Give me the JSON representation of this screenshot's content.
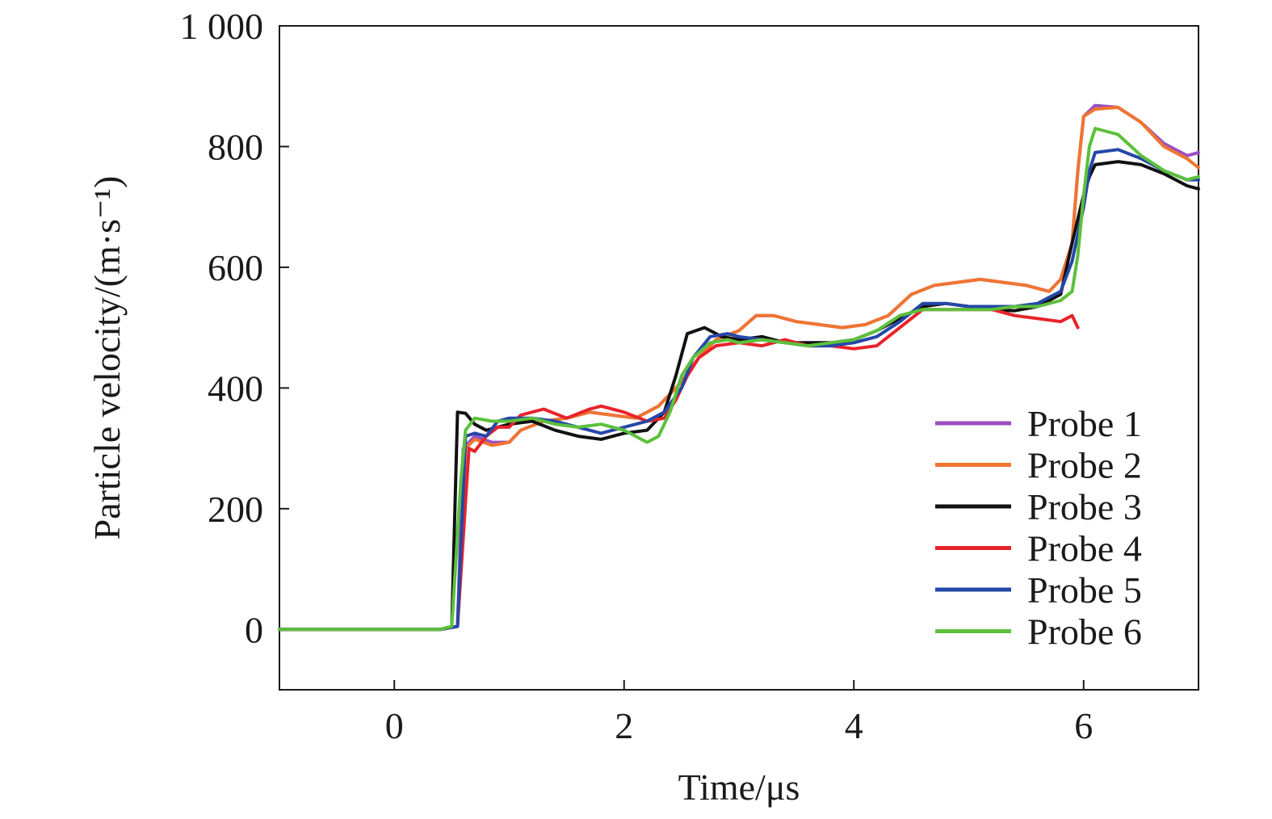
{
  "chart_data": {
    "type": "line",
    "xlabel": "Time/μs",
    "ylabel": "Particle velocity/(m·s⁻¹)",
    "xlim": [
      -1.0,
      7.0
    ],
    "ylim": [
      -100,
      1000
    ],
    "x_ticks": [
      0,
      2,
      4,
      6
    ],
    "x_tick_labels": [
      "0",
      "2",
      "4",
      "6"
    ],
    "y_ticks": [
      0,
      200,
      400,
      600,
      800,
      1000
    ],
    "y_tick_labels": [
      "0",
      "200",
      "400",
      "600",
      "800",
      "1 000"
    ],
    "grid": false,
    "legend_position": "bottom-right",
    "series": [
      {
        "name": "Probe 1",
        "color": "#9b4fc1",
        "points": [
          [
            -1.0,
            0
          ],
          [
            0.4,
            0
          ],
          [
            0.55,
            5
          ],
          [
            0.6,
            300
          ],
          [
            0.7,
            320
          ],
          [
            0.85,
            310
          ],
          [
            1.0,
            310
          ],
          [
            1.1,
            330
          ],
          [
            1.3,
            345
          ],
          [
            1.5,
            350
          ],
          [
            1.7,
            360
          ],
          [
            1.9,
            355
          ],
          [
            2.1,
            350
          ],
          [
            2.3,
            370
          ],
          [
            2.5,
            410
          ],
          [
            2.65,
            450
          ],
          [
            2.8,
            480
          ],
          [
            3.0,
            495
          ],
          [
            3.15,
            520
          ],
          [
            3.3,
            520
          ],
          [
            3.5,
            510
          ],
          [
            3.7,
            505
          ],
          [
            3.9,
            500
          ],
          [
            4.1,
            505
          ],
          [
            4.3,
            520
          ],
          [
            4.5,
            555
          ],
          [
            4.7,
            570
          ],
          [
            4.9,
            575
          ],
          [
            5.1,
            580
          ],
          [
            5.3,
            575
          ],
          [
            5.5,
            570
          ],
          [
            5.7,
            560
          ],
          [
            5.8,
            580
          ],
          [
            5.9,
            640
          ],
          [
            5.95,
            760
          ],
          [
            6.0,
            850
          ],
          [
            6.1,
            868
          ],
          [
            6.3,
            865
          ],
          [
            6.5,
            840
          ],
          [
            6.7,
            805
          ],
          [
            6.9,
            785
          ],
          [
            7.0,
            790
          ]
        ]
      },
      {
        "name": "Probe 2",
        "color": "#f07530",
        "points": [
          [
            -1.0,
            0
          ],
          [
            0.4,
            0
          ],
          [
            0.55,
            5
          ],
          [
            0.62,
            300
          ],
          [
            0.7,
            315
          ],
          [
            0.85,
            305
          ],
          [
            1.0,
            310
          ],
          [
            1.1,
            330
          ],
          [
            1.3,
            345
          ],
          [
            1.5,
            350
          ],
          [
            1.7,
            360
          ],
          [
            1.9,
            355
          ],
          [
            2.1,
            350
          ],
          [
            2.3,
            370
          ],
          [
            2.5,
            410
          ],
          [
            2.65,
            450
          ],
          [
            2.8,
            480
          ],
          [
            3.0,
            495
          ],
          [
            3.15,
            520
          ],
          [
            3.3,
            520
          ],
          [
            3.5,
            510
          ],
          [
            3.7,
            505
          ],
          [
            3.9,
            500
          ],
          [
            4.1,
            505
          ],
          [
            4.3,
            520
          ],
          [
            4.5,
            555
          ],
          [
            4.7,
            570
          ],
          [
            4.9,
            575
          ],
          [
            5.1,
            580
          ],
          [
            5.3,
            575
          ],
          [
            5.5,
            570
          ],
          [
            5.7,
            560
          ],
          [
            5.8,
            580
          ],
          [
            5.9,
            640
          ],
          [
            5.95,
            760
          ],
          [
            6.0,
            850
          ],
          [
            6.1,
            862
          ],
          [
            6.3,
            865
          ],
          [
            6.5,
            840
          ],
          [
            6.7,
            800
          ],
          [
            6.9,
            780
          ],
          [
            7.0,
            765
          ]
        ]
      },
      {
        "name": "Probe 3",
        "color": "#111111",
        "points": [
          [
            -1.0,
            0
          ],
          [
            0.4,
            0
          ],
          [
            0.5,
            5
          ],
          [
            0.55,
            360
          ],
          [
            0.62,
            358
          ],
          [
            0.7,
            340
          ],
          [
            0.8,
            330
          ],
          [
            0.9,
            335
          ],
          [
            1.0,
            340
          ],
          [
            1.2,
            345
          ],
          [
            1.4,
            330
          ],
          [
            1.6,
            320
          ],
          [
            1.8,
            315
          ],
          [
            2.0,
            325
          ],
          [
            2.2,
            330
          ],
          [
            2.35,
            360
          ],
          [
            2.45,
            420
          ],
          [
            2.55,
            490
          ],
          [
            2.7,
            500
          ],
          [
            2.85,
            485
          ],
          [
            3.0,
            480
          ],
          [
            3.2,
            485
          ],
          [
            3.4,
            475
          ],
          [
            3.6,
            475
          ],
          [
            3.8,
            475
          ],
          [
            4.0,
            480
          ],
          [
            4.2,
            495
          ],
          [
            4.4,
            515
          ],
          [
            4.6,
            535
          ],
          [
            4.8,
            540
          ],
          [
            5.0,
            535
          ],
          [
            5.2,
            530
          ],
          [
            5.4,
            528
          ],
          [
            5.6,
            535
          ],
          [
            5.8,
            555
          ],
          [
            5.9,
            640
          ],
          [
            6.0,
            720
          ],
          [
            6.05,
            750
          ],
          [
            6.1,
            770
          ],
          [
            6.3,
            775
          ],
          [
            6.5,
            770
          ],
          [
            6.7,
            755
          ],
          [
            6.9,
            735
          ],
          [
            7.0,
            730
          ]
        ]
      },
      {
        "name": "Probe 4",
        "color": "#e8232a",
        "points": [
          [
            -1.0,
            0
          ],
          [
            0.4,
            0
          ],
          [
            0.55,
            5
          ],
          [
            0.65,
            300
          ],
          [
            0.7,
            295
          ],
          [
            0.8,
            320
          ],
          [
            0.9,
            335
          ],
          [
            1.0,
            335
          ],
          [
            1.1,
            355
          ],
          [
            1.3,
            365
          ],
          [
            1.5,
            350
          ],
          [
            1.7,
            365
          ],
          [
            1.8,
            370
          ],
          [
            2.0,
            360
          ],
          [
            2.2,
            345
          ],
          [
            2.35,
            350
          ],
          [
            2.45,
            380
          ],
          [
            2.55,
            420
          ],
          [
            2.65,
            450
          ],
          [
            2.8,
            470
          ],
          [
            3.0,
            475
          ],
          [
            3.2,
            470
          ],
          [
            3.4,
            480
          ],
          [
            3.6,
            470
          ],
          [
            3.8,
            470
          ],
          [
            4.0,
            465
          ],
          [
            4.2,
            470
          ],
          [
            4.4,
            500
          ],
          [
            4.6,
            530
          ],
          [
            4.8,
            530
          ],
          [
            5.0,
            530
          ],
          [
            5.2,
            530
          ],
          [
            5.4,
            520
          ],
          [
            5.6,
            515
          ],
          [
            5.8,
            510
          ],
          [
            5.9,
            520
          ],
          [
            5.95,
            500
          ]
        ]
      },
      {
        "name": "Probe 5",
        "color": "#2547a8",
        "points": [
          [
            -1.0,
            0
          ],
          [
            0.4,
            0
          ],
          [
            0.55,
            5
          ],
          [
            0.62,
            320
          ],
          [
            0.7,
            325
          ],
          [
            0.8,
            320
          ],
          [
            0.9,
            345
          ],
          [
            1.0,
            350
          ],
          [
            1.2,
            350
          ],
          [
            1.4,
            345
          ],
          [
            1.6,
            335
          ],
          [
            1.8,
            325
          ],
          [
            2.0,
            335
          ],
          [
            2.2,
            345
          ],
          [
            2.35,
            360
          ],
          [
            2.5,
            400
          ],
          [
            2.6,
            450
          ],
          [
            2.75,
            485
          ],
          [
            2.9,
            490
          ],
          [
            3.0,
            485
          ],
          [
            3.2,
            480
          ],
          [
            3.4,
            475
          ],
          [
            3.6,
            470
          ],
          [
            3.8,
            470
          ],
          [
            4.0,
            475
          ],
          [
            4.2,
            485
          ],
          [
            4.4,
            510
          ],
          [
            4.6,
            540
          ],
          [
            4.8,
            540
          ],
          [
            5.0,
            535
          ],
          [
            5.2,
            535
          ],
          [
            5.4,
            535
          ],
          [
            5.6,
            540
          ],
          [
            5.8,
            560
          ],
          [
            5.9,
            610
          ],
          [
            6.0,
            700
          ],
          [
            6.05,
            760
          ],
          [
            6.1,
            790
          ],
          [
            6.3,
            795
          ],
          [
            6.5,
            780
          ],
          [
            6.7,
            760
          ],
          [
            6.9,
            745
          ],
          [
            7.0,
            745
          ]
        ]
      },
      {
        "name": "Probe 6",
        "color": "#5cc03c",
        "points": [
          [
            -1.0,
            0
          ],
          [
            0.4,
            0
          ],
          [
            0.5,
            5
          ],
          [
            0.58,
            250
          ],
          [
            0.62,
            330
          ],
          [
            0.7,
            350
          ],
          [
            0.85,
            345
          ],
          [
            1.0,
            345
          ],
          [
            1.2,
            350
          ],
          [
            1.4,
            340
          ],
          [
            1.6,
            335
          ],
          [
            1.8,
            340
          ],
          [
            2.0,
            330
          ],
          [
            2.1,
            320
          ],
          [
            2.2,
            310
          ],
          [
            2.3,
            320
          ],
          [
            2.4,
            360
          ],
          [
            2.5,
            420
          ],
          [
            2.6,
            450
          ],
          [
            2.75,
            475
          ],
          [
            2.9,
            480
          ],
          [
            3.0,
            475
          ],
          [
            3.2,
            480
          ],
          [
            3.4,
            475
          ],
          [
            3.6,
            470
          ],
          [
            3.8,
            475
          ],
          [
            4.0,
            480
          ],
          [
            4.2,
            495
          ],
          [
            4.4,
            520
          ],
          [
            4.6,
            530
          ],
          [
            4.8,
            530
          ],
          [
            5.0,
            530
          ],
          [
            5.2,
            530
          ],
          [
            5.4,
            535
          ],
          [
            5.6,
            535
          ],
          [
            5.8,
            545
          ],
          [
            5.9,
            560
          ],
          [
            5.95,
            620
          ],
          [
            6.0,
            720
          ],
          [
            6.05,
            800
          ],
          [
            6.1,
            830
          ],
          [
            6.3,
            820
          ],
          [
            6.5,
            785
          ],
          [
            6.7,
            760
          ],
          [
            6.9,
            745
          ],
          [
            7.0,
            750
          ]
        ]
      }
    ]
  }
}
